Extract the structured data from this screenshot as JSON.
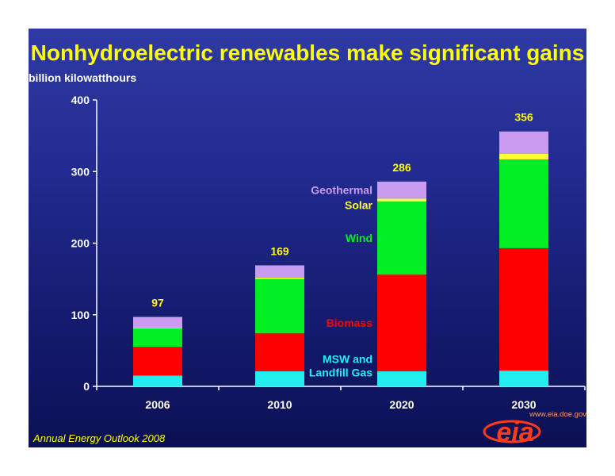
{
  "chart_data": {
    "type": "bar",
    "stacked": true,
    "title": "Nonhydroelectric renewables make significant gains",
    "ylabel": "billion kilowatthours",
    "xlabel": "",
    "categories": [
      "2006",
      "2010",
      "2020",
      "2030"
    ],
    "ylim": [
      0,
      400
    ],
    "yticks": [
      0,
      100,
      200,
      300,
      400
    ],
    "totals": [
      97,
      169,
      286,
      356
    ],
    "series": [
      {
        "name": "MSW and Landfill Gas",
        "color": "#22eef0",
        "values": [
          15,
          21,
          21,
          22
        ]
      },
      {
        "name": "Biomass",
        "color": "#ff0000",
        "values": [
          40,
          53,
          135,
          171
        ]
      },
      {
        "name": "Wind",
        "color": "#00ee22",
        "values": [
          26,
          76,
          102,
          124
        ]
      },
      {
        "name": "Solar",
        "color": "#ffff33",
        "values": [
          1,
          2,
          4,
          8
        ]
      },
      {
        "name": "Geothermal",
        "color": "#c99cf2",
        "values": [
          15,
          17,
          24,
          31
        ]
      }
    ],
    "grid": false,
    "legend": "inline labels beside the 2020 bar"
  },
  "title_color": "#ffff00",
  "total_label_color": "#ffff00",
  "footer": {
    "source": "Annual Energy Outlook 2008",
    "logo_text": "eia",
    "url": "www.eia.doe.gov"
  }
}
